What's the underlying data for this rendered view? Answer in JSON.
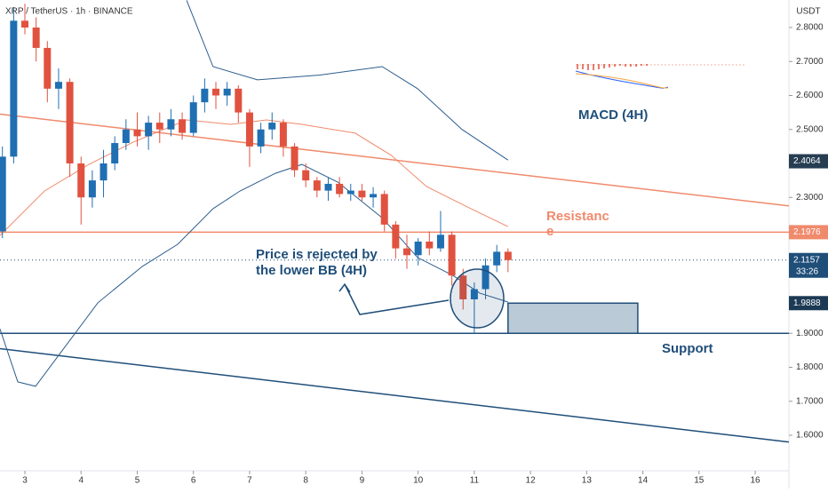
{
  "chart_data": {
    "type": "candlestick",
    "title": "XRP / TetherUS · 1h · BINANCE",
    "y_axis_label": "USDT",
    "up_color": "#1f6fb2",
    "down_color": "#e0523f",
    "xlim": [
      2.557,
      16.6
    ],
    "ylim": [
      1.4954,
      2.881
    ],
    "xticks": [
      3,
      4,
      5,
      6,
      7,
      8,
      9,
      10,
      11,
      12,
      13,
      14,
      15,
      16
    ],
    "yticks": [
      {
        "value": 2.8,
        "label": "2.8000"
      },
      {
        "value": 2.7,
        "label": "2.7000"
      },
      {
        "value": 2.6,
        "label": "2.6000"
      },
      {
        "value": 2.5,
        "label": "2.5000"
      },
      {
        "value": 2.3,
        "label": "2.3000"
      },
      {
        "value": 1.9,
        "label": "1.9000"
      },
      {
        "value": 1.8,
        "label": "1.8000"
      },
      {
        "value": 1.7,
        "label": "1.7000"
      },
      {
        "value": 1.6,
        "label": "1.6000"
      }
    ],
    "x": [
      2.6,
      2.8,
      3.0,
      3.2,
      3.4,
      3.6,
      3.8,
      4.0,
      4.2,
      4.4,
      4.6,
      4.8,
      5.0,
      5.2,
      5.4,
      5.6,
      5.8,
      6.0,
      6.2,
      6.4,
      6.6,
      6.8,
      7.0,
      7.2,
      7.4,
      7.6,
      7.8,
      8.0,
      8.2,
      8.4,
      8.6,
      8.8,
      9.0,
      9.2,
      9.4,
      9.6,
      9.8,
      10.0,
      10.2,
      10.4,
      10.6,
      10.8,
      11.0,
      11.2,
      11.4,
      11.6
    ],
    "open": [
      2.2,
      2.42,
      2.82,
      2.8,
      2.74,
      2.62,
      2.64,
      2.4,
      2.3,
      2.35,
      2.4,
      2.46,
      2.5,
      2.48,
      2.52,
      2.5,
      2.53,
      2.49,
      2.58,
      2.62,
      2.6,
      2.62,
      2.55,
      2.45,
      2.5,
      2.52,
      2.45,
      2.38,
      2.35,
      2.32,
      2.34,
      2.31,
      2.32,
      2.3,
      2.31,
      2.22,
      2.15,
      2.13,
      2.17,
      2.15,
      2.19,
      2.07,
      2.0,
      2.03,
      2.1,
      2.14
    ],
    "high": [
      2.45,
      2.86,
      2.87,
      2.83,
      2.76,
      2.68,
      2.65,
      2.42,
      2.38,
      2.44,
      2.48,
      2.53,
      2.55,
      2.54,
      2.55,
      2.56,
      2.55,
      2.6,
      2.65,
      2.64,
      2.64,
      2.63,
      2.56,
      2.52,
      2.55,
      2.53,
      2.46,
      2.4,
      2.36,
      2.36,
      2.36,
      2.34,
      2.34,
      2.33,
      2.32,
      2.23,
      2.19,
      2.18,
      2.2,
      2.26,
      2.2,
      2.09,
      2.05,
      2.12,
      2.16,
      2.15
    ],
    "low": [
      2.18,
      2.4,
      2.78,
      2.7,
      2.58,
      2.56,
      2.36,
      2.22,
      2.27,
      2.3,
      2.38,
      2.44,
      2.45,
      2.44,
      2.46,
      2.48,
      2.47,
      2.48,
      2.55,
      2.56,
      2.57,
      2.52,
      2.39,
      2.43,
      2.47,
      2.42,
      2.36,
      2.33,
      2.3,
      2.29,
      2.3,
      2.29,
      2.29,
      2.27,
      2.2,
      2.12,
      2.09,
      2.1,
      2.13,
      2.14,
      2.04,
      1.97,
      1.9,
      2.0,
      2.08,
      2.08
    ],
    "close": [
      2.42,
      2.82,
      2.8,
      2.74,
      2.62,
      2.64,
      2.4,
      2.3,
      2.35,
      2.4,
      2.46,
      2.5,
      2.48,
      2.52,
      2.5,
      2.53,
      2.49,
      2.58,
      2.62,
      2.6,
      2.62,
      2.55,
      2.45,
      2.5,
      2.52,
      2.45,
      2.38,
      2.35,
      2.32,
      2.34,
      2.31,
      2.32,
      2.3,
      2.31,
      2.22,
      2.15,
      2.13,
      2.17,
      2.15,
      2.19,
      2.07,
      2.0,
      2.03,
      2.1,
      2.14,
      2.1157
    ],
    "series": [
      {
        "color": "#2c5d8c",
        "x": [
          5.88,
          6.35,
          7.14,
          8.25,
          9.36,
          9.99,
          10.78,
          11.6
        ],
        "values": [
          2.88,
          2.685,
          2.646,
          2.66,
          2.685,
          2.62,
          2.5,
          2.41
        ]
      },
      {
        "color": "#2c5d8c",
        "x": [
          2.557,
          2.873,
          3.19,
          3.66,
          4.3,
          5.09,
          5.72,
          6.35,
          6.83,
          7.46,
          7.93,
          8.57,
          9.36,
          9.99,
          10.62,
          11.1,
          11.6
        ],
        "values": [
          1.913,
          1.757,
          1.744,
          1.848,
          1.99,
          2.097,
          2.162,
          2.267,
          2.319,
          2.371,
          2.397,
          2.345,
          2.24,
          2.123,
          2.07,
          2.018,
          1.992
        ]
      },
      {
        "color": "#f08a6c",
        "x": [
          2.557,
          3.35,
          4.14,
          4.93,
          5.88,
          6.67,
          7.3,
          7.93,
          8.88,
          9.52,
          10.15,
          10.94,
          11.6
        ],
        "values": [
          2.188,
          2.319,
          2.397,
          2.463,
          2.528,
          2.515,
          2.528,
          2.515,
          2.489,
          2.424,
          2.332,
          2.267,
          2.214
        ]
      }
    ],
    "trendlines": [
      {
        "color": "#f08a6c",
        "x": [
          2.557,
          16.6
        ],
        "values": [
          2.545,
          2.275
        ]
      },
      {
        "color": "#1f4e79",
        "x": [
          2.557,
          16.6
        ],
        "values": [
          1.855,
          1.58
        ]
      }
    ],
    "hlines": [
      {
        "color": "#f08a6c",
        "value": 2.1976
      },
      {
        "color": "#1f4e79",
        "value": 1.9
      }
    ],
    "current_price_line": 2.1157,
    "box": {
      "x": [
        11.6,
        13.91
      ],
      "values": [
        1.9,
        1.9888
      ]
    },
    "price_labels": [
      {
        "value": 2.4064,
        "color": "#263d52"
      },
      {
        "value": 2.1976,
        "color": "#f08a6c"
      },
      {
        "value": 2.1157,
        "color": "#1f4e79",
        "countdown": "33:26"
      },
      {
        "value": 1.9888,
        "color": "#1d3a55"
      }
    ],
    "annotations": {
      "resistance": [
        "Resistanc",
        "e"
      ],
      "rejection": [
        "Price is rejected by",
        "the lower BB (4H)"
      ],
      "macd": "MACD (4H)",
      "support": "Support"
    }
  }
}
